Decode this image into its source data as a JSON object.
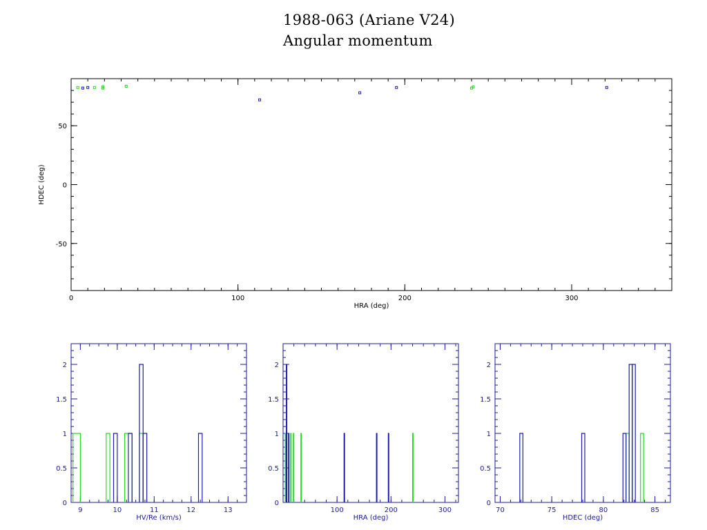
{
  "figure": {
    "title": "1988-063 (Ariane V24)",
    "subtitle": "Angular momentum"
  },
  "colors": {
    "axis": "#000000",
    "blue": "#1a1ab4",
    "green": "#22dd22",
    "hist_axis": "#1a1a9a"
  },
  "chart_data": [
    {
      "type": "scatter",
      "xlabel": "HRA (deg)",
      "ylabel": "HDEC (deg)",
      "xlim": [
        0,
        360
      ],
      "ylim": [
        -90,
        90
      ],
      "xticks": [
        0,
        100,
        200,
        300
      ],
      "yticks": [
        -50,
        0,
        50
      ],
      "series": [
        {
          "color": "blue",
          "points": [
            [
              7,
              82
            ],
            [
              10,
              82.5
            ],
            [
              113,
              72
            ],
            [
              173,
              78
            ],
            [
              195,
              82.5
            ],
            [
              321,
              82.5
            ]
          ]
        },
        {
          "color": "green",
          "points": [
            [
              4,
              82.5
            ],
            [
              14,
              82.5
            ],
            [
              19,
              82
            ],
            [
              19,
              83
            ],
            [
              33,
              83.5
            ],
            [
              240,
              82
            ],
            [
              241,
              83
            ]
          ]
        }
      ]
    },
    {
      "type": "bar",
      "xlabel": "HV/Re (km/s)",
      "xlim": [
        8.75,
        13.5
      ],
      "ylim": [
        0,
        2.3
      ],
      "xticks": [
        9,
        10,
        11,
        12,
        13
      ],
      "yticks": [
        0,
        0.5,
        1,
        1.5,
        2
      ],
      "ytick_labels": [
        "0",
        "0.5",
        "1",
        "1.5",
        "2"
      ],
      "series": [
        {
          "color": "green",
          "bins": [
            [
              8.8,
              9.0,
              1
            ],
            [
              9.7,
              9.8,
              1
            ],
            [
              10.2,
              10.4,
              1
            ],
            [
              10.6,
              10.7,
              1
            ]
          ]
        },
        {
          "color": "blue",
          "bins": [
            [
              9.9,
              10.0,
              1
            ],
            [
              10.3,
              10.4,
              1
            ],
            [
              10.6,
              10.7,
              2
            ],
            [
              10.7,
              10.8,
              1
            ],
            [
              12.2,
              12.3,
              1
            ]
          ]
        }
      ]
    },
    {
      "type": "bar",
      "xlabel": "HRA (deg)",
      "xlim": [
        0,
        325
      ],
      "ylim": [
        0,
        2.3
      ],
      "xticks": [
        100,
        200,
        300
      ],
      "yticks": [
        0,
        0.5,
        1,
        1.5,
        2
      ],
      "ytick_labels": [
        "0",
        "0.5",
        "1",
        "1.5",
        "2"
      ],
      "series": [
        {
          "color": "green",
          "bins": [
            [
              4,
              5,
              1
            ],
            [
              14,
              15,
              1
            ],
            [
              19,
              20,
              1
            ],
            [
              33,
              34,
              1
            ],
            [
              240,
              241,
              1
            ]
          ]
        },
        {
          "color": "blue",
          "bins": [
            [
              6,
              7,
              2
            ],
            [
              10,
              11,
              1
            ],
            [
              113,
              114,
              1
            ],
            [
              173,
              174,
              1
            ],
            [
              195,
              196,
              1
            ]
          ]
        }
      ]
    },
    {
      "type": "bar",
      "xlabel": "HDEC (deg)",
      "xlim": [
        69.5,
        86.5
      ],
      "ylim": [
        0,
        2.3
      ],
      "xticks": [
        70,
        75,
        80,
        85
      ],
      "yticks": [
        0,
        0.5,
        1,
        1.5,
        2
      ],
      "ytick_labels": [
        "0",
        "0.5",
        "1",
        "1.5",
        "2"
      ],
      "series": [
        {
          "color": "green",
          "bins": [
            [
              82.2,
              82.5,
              1
            ],
            [
              83.6,
              83.9,
              1
            ]
          ]
        },
        {
          "color": "blue",
          "bins": [
            [
              71.9,
              72.2,
              1
            ],
            [
              77.9,
              78.2,
              1
            ],
            [
              81.9,
              82.2,
              1
            ],
            [
              82.5,
              82.8,
              2
            ],
            [
              82.8,
              83.1,
              2
            ]
          ]
        }
      ]
    }
  ]
}
